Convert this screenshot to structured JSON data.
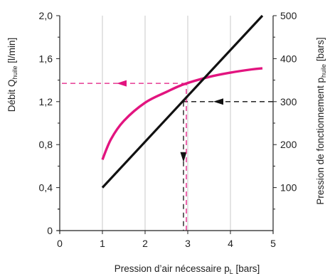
{
  "chart_data": {
    "type": "line",
    "title": "",
    "x_axis": {
      "label": "Pression d’air nécessaire p",
      "label_subscript": "L",
      "label_suffix": " [bars]",
      "range": [
        0,
        5
      ],
      "ticks": [
        "0",
        "1",
        "2",
        "3",
        "4",
        "5"
      ]
    },
    "y_axis_left": {
      "label": "Débit Q",
      "label_subscript": "huile",
      "label_suffix": " [l/min]",
      "range": [
        0,
        2.0
      ],
      "ticks": [
        "0",
        "0,4",
        "0,8",
        "1,2",
        "1,6",
        "2,0"
      ]
    },
    "y_axis_right": {
      "label": "Pression de fonctionnement p",
      "label_subscript": "huile",
      "label_suffix": " [bars]",
      "range": [
        0,
        500
      ],
      "ticks": [
        "100",
        "200",
        "300",
        "400",
        "500"
      ]
    },
    "grid": "vertical-only",
    "series": [
      {
        "axis": "left",
        "color": "#e2147f",
        "x": [
          1.0,
          1.2,
          1.5,
          2.0,
          2.5,
          2.9,
          3.5,
          4.0,
          4.5,
          4.75
        ],
        "y": [
          0.66,
          0.85,
          1.02,
          1.19,
          1.29,
          1.36,
          1.43,
          1.47,
          1.5,
          1.51
        ]
      },
      {
        "axis": "right",
        "color": "#111111",
        "x": [
          1.0,
          4.75
        ],
        "y": [
          100,
          500
        ]
      }
    ],
    "reading_example": {
      "from_right_axis": 300,
      "x": 2.9,
      "to_left_axis": 1.37,
      "colors": {
        "black_path": "#111111",
        "pink_path": "#e2147f"
      }
    }
  }
}
